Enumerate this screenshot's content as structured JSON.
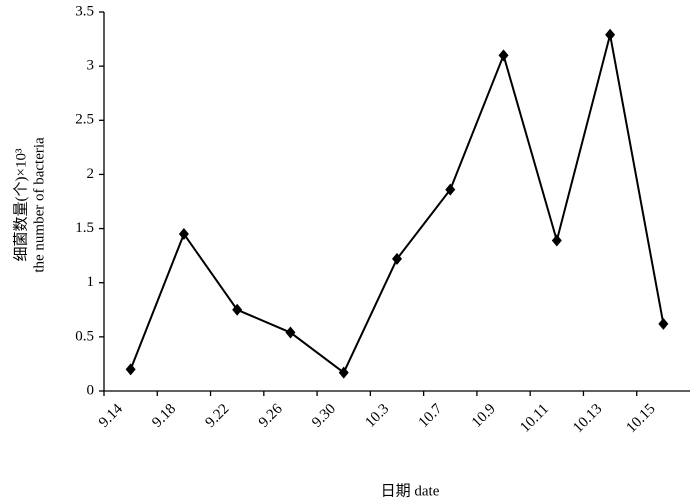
{
  "chart_data": {
    "type": "line",
    "y_label_lines": [
      "细菌数量(个)×10³",
      "the number of  bacteria"
    ],
    "x_label": "日期  date",
    "categories": [
      "9.14",
      "9.18",
      "9.22",
      "9.26",
      "9.30",
      "10.3",
      "10.7",
      "10.9",
      "10.11",
      "10.13",
      "10.15"
    ],
    "values": [
      0.2,
      1.45,
      0.75,
      0.54,
      0.17,
      1.22,
      1.86,
      3.1,
      1.39,
      3.29,
      0.62
    ],
    "color": "#000000",
    "ylim": [
      0,
      3.5
    ],
    "yticks": [
      0,
      0.5,
      1,
      1.5,
      2,
      2.5,
      3,
      3.5
    ],
    "grid": false
  }
}
